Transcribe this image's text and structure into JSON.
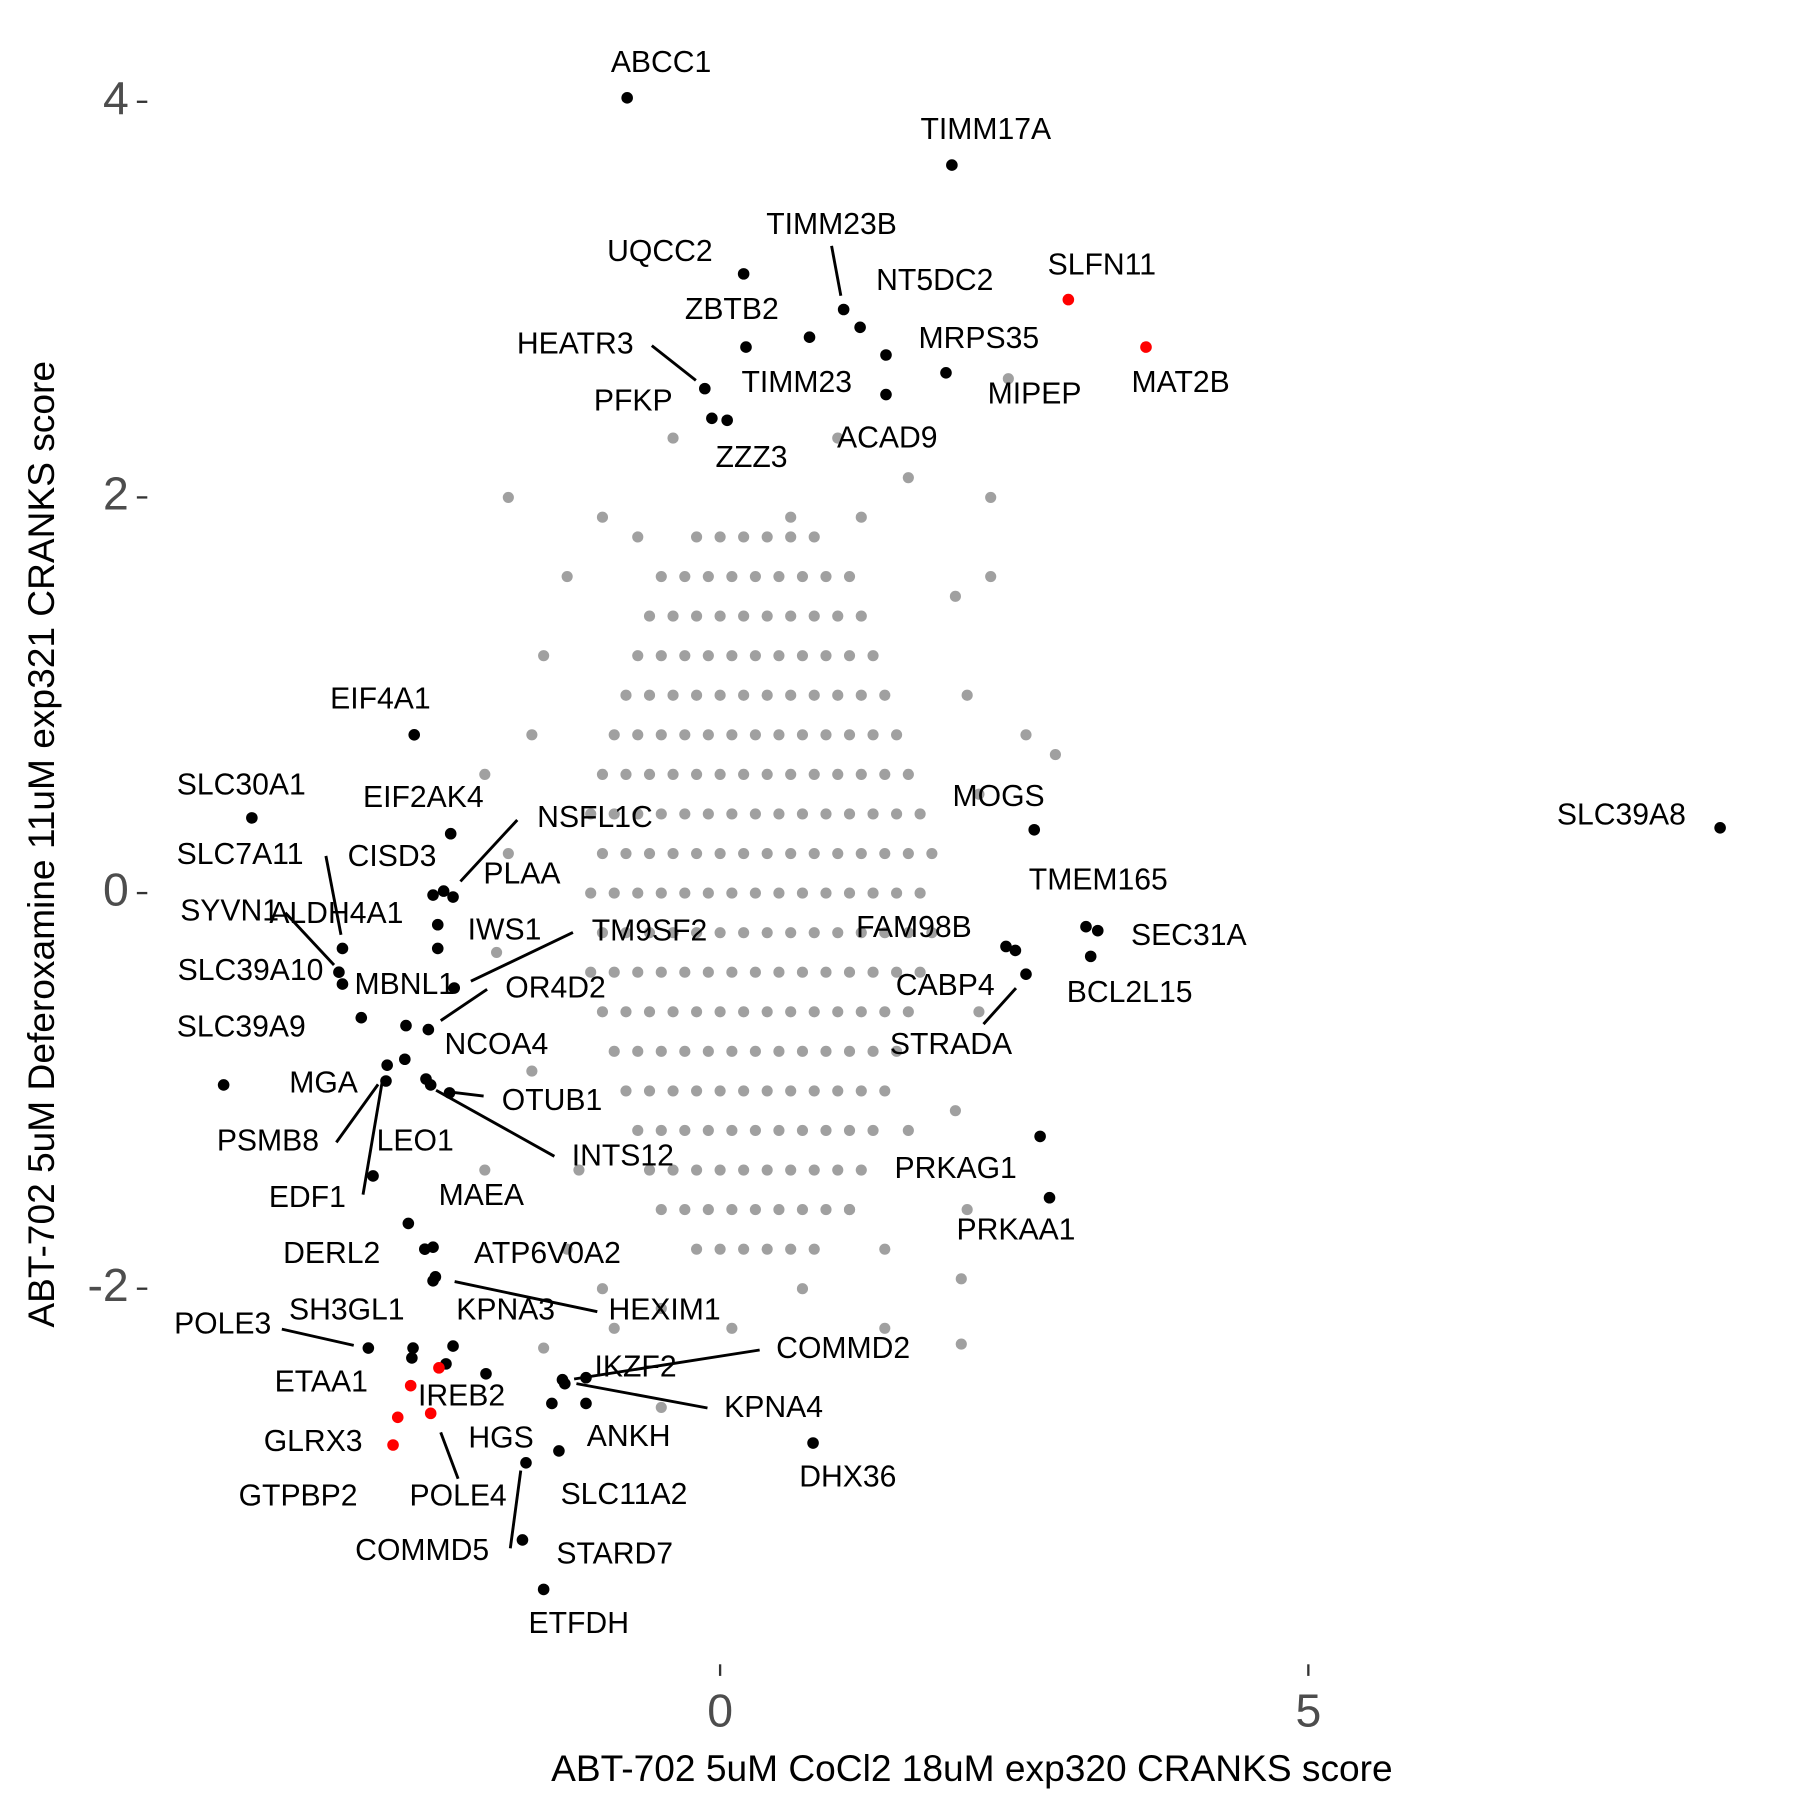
{
  "chart_data": {
    "type": "scatter",
    "x_label": "ABT-702 5uM CoCl2 18uM exp320 CRANKS score",
    "y_label": "ABT-702 5uM Deferoxamine 11uM exp321 CRANKS score",
    "xlim": [
      -4.79,
      9.11
    ],
    "ylim": [
      -3.84,
      4.28
    ],
    "xticks": [
      0,
      5
    ],
    "yticks": [
      -2,
      0,
      2,
      4
    ],
    "grid": false,
    "series": [
      {
        "color": "#a0a0a0",
        "x": [
          -0.2,
          0,
          0.2,
          0.4,
          0.6,
          0.8,
          -0.5,
          -0.3,
          -0.1,
          0.1,
          0.3,
          0.5,
          0.7,
          0.9,
          1.1,
          -0.6,
          -0.4,
          -0.2,
          0,
          0.2,
          0.4,
          0.6,
          0.8,
          1,
          1.2,
          -0.7,
          -0.5,
          -0.3,
          -0.1,
          0.1,
          0.3,
          0.5,
          0.7,
          0.9,
          1.1,
          1.3,
          -0.8,
          -0.6,
          -0.4,
          -0.2,
          0,
          0.2,
          0.4,
          0.6,
          0.8,
          1,
          1.2,
          1.4,
          -0.9,
          -0.7,
          -0.5,
          -0.3,
          -0.1,
          0.1,
          0.3,
          0.5,
          0.7,
          0.9,
          1.1,
          1.3,
          1.5,
          -1,
          -0.8,
          -0.6,
          -0.4,
          -0.2,
          0,
          0.2,
          0.4,
          0.6,
          0.8,
          1,
          1.2,
          1.4,
          1.6,
          -1.1,
          -0.9,
          -0.7,
          -0.5,
          -0.3,
          -0.1,
          0.1,
          0.3,
          0.5,
          0.7,
          0.9,
          1.1,
          1.3,
          1.5,
          1.7,
          -1,
          -0.8,
          -0.6,
          -0.4,
          -0.2,
          0,
          0.2,
          0.4,
          0.6,
          0.8,
          1,
          1.2,
          1.4,
          1.6,
          1.8,
          -1.1,
          -0.9,
          -0.7,
          -0.5,
          -0.3,
          -0.1,
          0.1,
          0.3,
          0.5,
          0.7,
          0.9,
          1.1,
          1.3,
          1.5,
          1.7,
          -1,
          -0.8,
          -0.6,
          -0.4,
          -0.2,
          0,
          0.2,
          0.4,
          0.6,
          0.8,
          1,
          1.2,
          1.4,
          1.6,
          1.8,
          -1.1,
          -0.9,
          -0.7,
          -0.5,
          -0.3,
          -0.1,
          0.1,
          0.3,
          0.5,
          0.7,
          0.9,
          1.1,
          1.3,
          1.5,
          1.7,
          -1,
          -0.8,
          -0.6,
          -0.4,
          -0.2,
          0,
          0.2,
          0.4,
          0.6,
          0.8,
          1,
          1.2,
          1.4,
          1.6,
          -0.9,
          -0.7,
          -0.5,
          -0.3,
          -0.1,
          0.1,
          0.3,
          0.5,
          0.7,
          0.9,
          1.1,
          1.3,
          1.5,
          -0.8,
          -0.6,
          -0.4,
          -0.2,
          0,
          0.2,
          0.4,
          0.6,
          0.8,
          1,
          1.2,
          1.4,
          -0.7,
          -0.5,
          -0.3,
          -0.1,
          0.1,
          0.3,
          0.5,
          0.7,
          0.9,
          1.1,
          1.3,
          -0.6,
          -0.4,
          -0.2,
          0,
          0.2,
          0.4,
          0.6,
          0.8,
          1,
          1.2,
          -0.5,
          -0.3,
          -0.1,
          0.1,
          0.3,
          0.5,
          0.7,
          0.9,
          1.1,
          -0.2,
          0,
          0.2,
          0.4,
          0.6,
          0.8,
          -1.8,
          -1,
          -0.7,
          0.6,
          1.2,
          2.3,
          1.6,
          -0.4,
          1,
          2.45,
          -1.3,
          -1.5,
          -1.6,
          2,
          2.3,
          2.1,
          2.6,
          2.85,
          2.2,
          -2,
          -1.8,
          -1.9,
          -1.6,
          -2,
          2.2,
          2,
          1.6,
          2.1,
          1.4,
          2.05,
          -1.3,
          -1,
          -0.5,
          0.7,
          1.4,
          2.05,
          -0.5,
          -0.9,
          0.1,
          -1.5,
          1.1,
          -1.2
        ],
        "values": [
          1.8,
          1.8,
          1.8,
          1.8,
          1.8,
          1.8,
          1.6,
          1.6,
          1.6,
          1.6,
          1.6,
          1.6,
          1.6,
          1.6,
          1.6,
          1.4,
          1.4,
          1.4,
          1.4,
          1.4,
          1.4,
          1.4,
          1.4,
          1.4,
          1.4,
          1.2,
          1.2,
          1.2,
          1.2,
          1.2,
          1.2,
          1.2,
          1.2,
          1.2,
          1.2,
          1.2,
          1,
          1,
          1,
          1,
          1,
          1,
          1,
          1,
          1,
          1,
          1,
          1,
          0.8,
          0.8,
          0.8,
          0.8,
          0.8,
          0.8,
          0.8,
          0.8,
          0.8,
          0.8,
          0.8,
          0.8,
          0.8,
          0.6,
          0.6,
          0.6,
          0.6,
          0.6,
          0.6,
          0.6,
          0.6,
          0.6,
          0.6,
          0.6,
          0.6,
          0.6,
          0.6,
          0.4,
          0.4,
          0.4,
          0.4,
          0.4,
          0.4,
          0.4,
          0.4,
          0.4,
          0.4,
          0.4,
          0.4,
          0.4,
          0.4,
          0.4,
          0.2,
          0.2,
          0.2,
          0.2,
          0.2,
          0.2,
          0.2,
          0.2,
          0.2,
          0.2,
          0.2,
          0.2,
          0.2,
          0.2,
          0.2,
          0,
          0,
          0,
          0,
          0,
          0,
          0,
          0,
          0,
          0,
          0,
          0,
          0,
          0,
          0,
          -0.2,
          -0.2,
          -0.2,
          -0.2,
          -0.2,
          -0.2,
          -0.2,
          -0.2,
          -0.2,
          -0.2,
          -0.2,
          -0.2,
          -0.2,
          -0.2,
          -0.2,
          -0.4,
          -0.4,
          -0.4,
          -0.4,
          -0.4,
          -0.4,
          -0.4,
          -0.4,
          -0.4,
          -0.4,
          -0.4,
          -0.4,
          -0.4,
          -0.4,
          -0.4,
          -0.6,
          -0.6,
          -0.6,
          -0.6,
          -0.6,
          -0.6,
          -0.6,
          -0.6,
          -0.6,
          -0.6,
          -0.6,
          -0.6,
          -0.6,
          -0.6,
          -0.8,
          -0.8,
          -0.8,
          -0.8,
          -0.8,
          -0.8,
          -0.8,
          -0.8,
          -0.8,
          -0.8,
          -0.8,
          -0.8,
          -0.8,
          -1,
          -1,
          -1,
          -1,
          -1,
          -1,
          -1,
          -1,
          -1,
          -1,
          -1,
          -1,
          -1.2,
          -1.2,
          -1.2,
          -1.2,
          -1.2,
          -1.2,
          -1.2,
          -1.2,
          -1.2,
          -1.2,
          -1.2,
          -1.4,
          -1.4,
          -1.4,
          -1.4,
          -1.4,
          -1.4,
          -1.4,
          -1.4,
          -1.4,
          -1.4,
          -1.6,
          -1.6,
          -1.6,
          -1.6,
          -1.6,
          -1.6,
          -1.6,
          -1.6,
          -1.6,
          -1.8,
          -1.8,
          -1.8,
          -1.8,
          -1.8,
          -1.8,
          2,
          1.9,
          1.8,
          1.9,
          1.9,
          2,
          2.1,
          2.3,
          2.3,
          2.6,
          1.6,
          1.2,
          0.8,
          1.5,
          1.6,
          1,
          0.8,
          0.7,
          0.5,
          0.6,
          0.2,
          -0.3,
          -0.9,
          -1.4,
          -0.6,
          -1.1,
          -1.2,
          -1.6,
          -1.8,
          -1.95,
          -1.8,
          -2,
          -2.1,
          -2,
          -2.2,
          -2.28,
          -2.6,
          -2.2,
          -2.2,
          -2.3,
          -1.6,
          -1.4
        ]
      },
      {
        "color": "#000000",
        "x": [
          -0.79,
          1.97,
          0.2,
          1.05,
          1.19,
          0.76,
          0.22,
          1.41,
          1.92,
          1.41,
          -0.13,
          -0.07,
          0.06,
          -2.6,
          -3.98,
          -2.29,
          -2.44,
          -2.35,
          -2.27,
          -2.4,
          -2.4,
          -3.21,
          -3.24,
          -3.21,
          -3.05,
          -2.26,
          -2.48,
          -2.67,
          -4.22,
          -2.68,
          -2.84,
          -2.83,
          -2.5,
          -2.46,
          -2.3,
          -2.95,
          -2.65,
          -2.51,
          -2.44,
          -2.42,
          -2.44,
          -2.99,
          -2.61,
          -2.62,
          -2.27,
          -2.33,
          -1.99,
          -1.34,
          -1.14,
          -1.32,
          -1.43,
          -1.14,
          -1.37,
          0.79,
          -1.65,
          -1.68,
          -1.5,
          2.67,
          8.5,
          3.11,
          3.21,
          2.43,
          2.51,
          3.15,
          2.6,
          2.72,
          2.8
        ],
        "values": [
          4.02,
          3.68,
          3.13,
          2.95,
          2.86,
          2.81,
          2.76,
          2.72,
          2.63,
          2.52,
          2.55,
          2.4,
          2.39,
          0.8,
          0.38,
          0.3,
          -0.01,
          0.01,
          -0.02,
          -0.16,
          -0.28,
          -0.28,
          -0.4,
          -0.46,
          -0.63,
          -0.48,
          -0.69,
          -0.67,
          -0.97,
          -0.84,
          -0.95,
          -0.87,
          -0.94,
          -0.97,
          -1.01,
          -1.43,
          -1.67,
          -1.8,
          -1.79,
          -1.94,
          -1.96,
          -2.3,
          -2.3,
          -2.35,
          -2.29,
          -2.38,
          -2.43,
          -2.46,
          -2.45,
          -2.48,
          -2.58,
          -2.58,
          -2.82,
          -2.78,
          -2.88,
          -3.27,
          -3.52,
          0.32,
          0.33,
          -0.17,
          -0.19,
          -0.27,
          -0.29,
          -0.32,
          -0.41,
          -1.23,
          -1.54
        ],
        "labels": [
          "ABCC1",
          "TIMM17A",
          "UQCC2",
          "TIMM23B",
          "NT5DC2",
          "TIMM23",
          "ZBTB2",
          "MRPS35",
          "MIPEP",
          "ACAD9",
          "HEATR3",
          "PFKP",
          "ZZZ3",
          "EIF4A1",
          "SLC30A1",
          "EIF2AK4",
          "CISD3",
          "NSFL1C",
          "PLAA",
          "ALDH4A1",
          "IWS1",
          "SLC7A11",
          "SYVN1",
          "SLC39A10",
          "MBNL1",
          "TM9SF2",
          "OR4D2",
          "NCOA4",
          "SLC39A9",
          "MGA",
          "PSMB8",
          "EDF1",
          "LEO1",
          "INTS12",
          "OTUB1",
          null,
          "MAEA",
          "DERL2",
          null,
          "ATP6V0A2",
          "HEXIM1",
          "POLE3",
          "SH3GL1",
          "ETAA1",
          "KPNA3",
          null,
          "IREB2",
          "COMMD2",
          "IKZF2",
          "KPNA4",
          "HGS",
          "ANKH",
          "SLC11A2",
          "DHX36",
          "COMMD5",
          "STARD7",
          "ETFDH",
          "MOGS",
          "SLC39A8",
          "TMEM165",
          "SEC31A",
          "FAM98B",
          "CABP4",
          "BCL2L15",
          "STRADA",
          "PRKAG1",
          "PRKAA1"
        ]
      },
      {
        "color": "#ff0000",
        "x": [
          2.96,
          3.62,
          -2.39,
          -2.63,
          -2.74,
          -2.46,
          -2.78
        ],
        "values": [
          3.0,
          2.76,
          -2.4,
          -2.49,
          -2.65,
          -2.63,
          -2.79
        ],
        "labels": [
          "SLFN11",
          "MAT2B",
          null,
          null,
          "GTPBP2",
          "POLE4",
          "GLRX3"
        ]
      }
    ]
  }
}
